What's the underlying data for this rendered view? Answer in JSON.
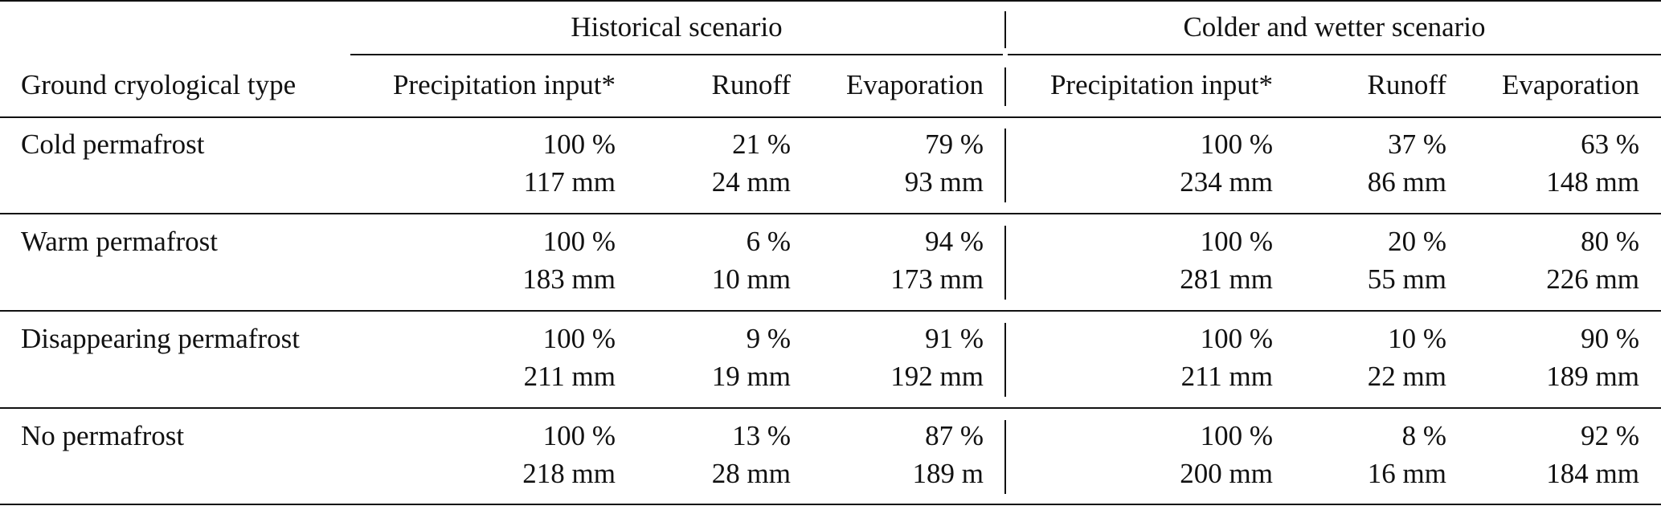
{
  "table": {
    "groups": {
      "historical": "Historical scenario",
      "colder_wetter": "Colder and wetter scenario"
    },
    "headers": {
      "stub": "Ground cryological type",
      "hist_precip": "Precipitation input*",
      "hist_runoff": "Runoff",
      "hist_evap": "Evaporation",
      "cw_precip": "Precipitation input*",
      "cw_runoff": "Runoff",
      "cw_evap": "Evaporation"
    },
    "rows": [
      {
        "type": "Cold permafrost",
        "hist": {
          "precip_pct": "100 %",
          "precip_mm": "117 mm",
          "runoff_pct": "21 %",
          "runoff_mm": "24 mm",
          "evap_pct": "79 %",
          "evap_mm": "93 mm"
        },
        "cw": {
          "precip_pct": "100 %",
          "precip_mm": "234 mm",
          "runoff_pct": "37 %",
          "runoff_mm": "86 mm",
          "evap_pct": "63 %",
          "evap_mm": "148 mm"
        }
      },
      {
        "type": "Warm permafrost",
        "hist": {
          "precip_pct": "100 %",
          "precip_mm": "183 mm",
          "runoff_pct": "6 %",
          "runoff_mm": "10 mm",
          "evap_pct": "94 %",
          "evap_mm": "173 mm"
        },
        "cw": {
          "precip_pct": "100 %",
          "precip_mm": "281 mm",
          "runoff_pct": "20 %",
          "runoff_mm": "55 mm",
          "evap_pct": "80 %",
          "evap_mm": "226 mm"
        }
      },
      {
        "type": "Disappearing permafrost",
        "hist": {
          "precip_pct": "100 %",
          "precip_mm": "211 mm",
          "runoff_pct": "9 %",
          "runoff_mm": "19 mm",
          "evap_pct": "91 %",
          "evap_mm": "192 mm"
        },
        "cw": {
          "precip_pct": "100 %",
          "precip_mm": "211 mm",
          "runoff_pct": "10 %",
          "runoff_mm": "22 mm",
          "evap_pct": "90 %",
          "evap_mm": "189 mm"
        }
      },
      {
        "type": "No permafrost",
        "hist": {
          "precip_pct": "100 %",
          "precip_mm": "218 mm",
          "runoff_pct": "13 %",
          "runoff_mm": "28 mm",
          "evap_pct": "87 %",
          "evap_mm": "189 m"
        },
        "cw": {
          "precip_pct": "100 %",
          "precip_mm": "200 mm",
          "runoff_pct": "8 %",
          "runoff_mm": "16 mm",
          "evap_pct": "92 %",
          "evap_mm": "184 mm"
        }
      }
    ]
  }
}
